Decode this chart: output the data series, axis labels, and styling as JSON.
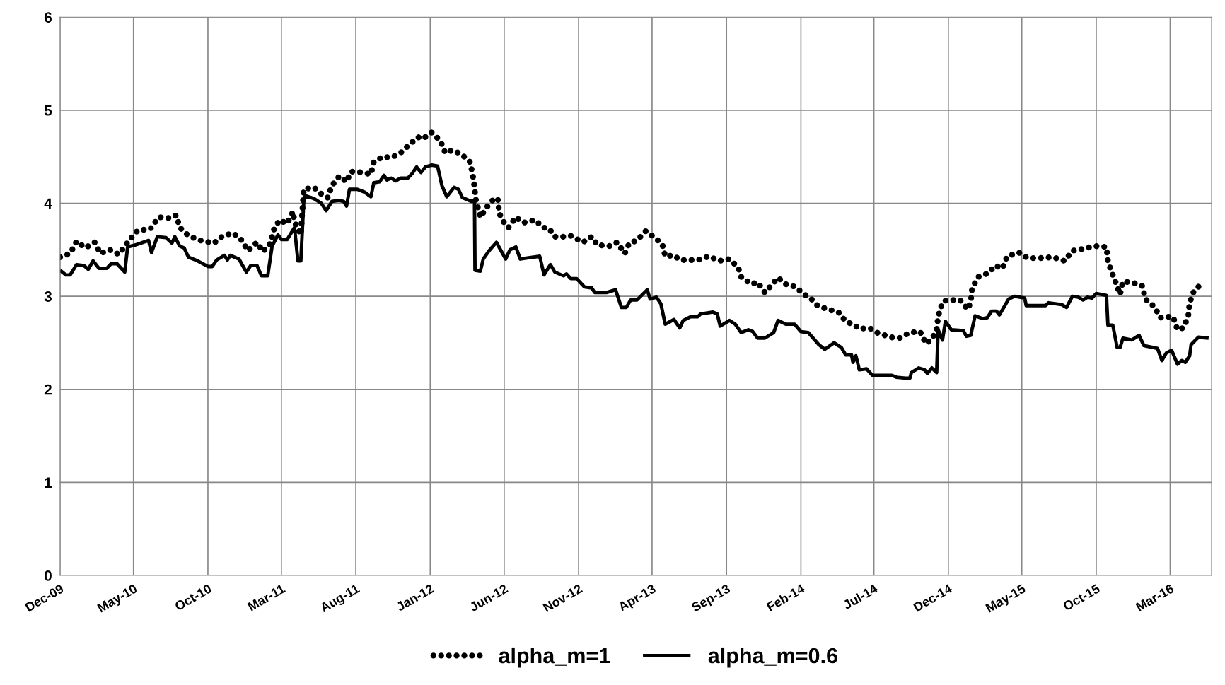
{
  "chart_data": {
    "type": "line",
    "xlim": [
      "2009-12-01",
      "2016-05-25"
    ],
    "xticks": [
      {
        "value": "2009-12-01",
        "label": "Dec-09"
      },
      {
        "value": "2010-05-01",
        "label": "May-10"
      },
      {
        "value": "2010-10-01",
        "label": "Oct-10"
      },
      {
        "value": "2011-03-01",
        "label": "Mar-11"
      },
      {
        "value": "2011-08-01",
        "label": "Aug-11"
      },
      {
        "value": "2012-01-01",
        "label": "Jan-12"
      },
      {
        "value": "2012-06-01",
        "label": "Jun-12"
      },
      {
        "value": "2012-11-01",
        "label": "Nov-12"
      },
      {
        "value": "2013-04-01",
        "label": "Apr-13"
      },
      {
        "value": "2013-09-01",
        "label": "Sep-13"
      },
      {
        "value": "2014-02-01",
        "label": "Feb-14"
      },
      {
        "value": "2014-07-01",
        "label": "Jul-14"
      },
      {
        "value": "2014-12-01",
        "label": "Dec-14"
      },
      {
        "value": "2015-05-01",
        "label": "May-15"
      },
      {
        "value": "2015-10-01",
        "label": "Oct-15"
      },
      {
        "value": "2016-03-01",
        "label": "Mar-16"
      }
    ],
    "ylim": [
      0,
      6
    ],
    "yticks": [
      0,
      1,
      2,
      3,
      4,
      5,
      6
    ],
    "grid": true,
    "legend": "bottom",
    "marker": "none",
    "series": [
      {
        "name": "alpha_m=1",
        "color": "#000000",
        "line_style": "dotted",
        "x": [
          "2009-12-01",
          "2009-12-22",
          "2010-01-04",
          "2010-01-22",
          "2010-02-10",
          "2010-02-22",
          "2010-03-13",
          "2010-04-01",
          "2010-04-22",
          "2010-05-10",
          "2010-06-04",
          "2010-06-22",
          "2010-07-16",
          "2010-07-28",
          "2010-08-04",
          "2010-08-22",
          "2010-09-16",
          "2010-10-13",
          "2010-11-01",
          "2010-11-22",
          "2010-12-10",
          "2010-12-22",
          "2011-01-10",
          "2011-01-22",
          "2011-02-07",
          "2011-02-13",
          "2011-02-25",
          "2011-03-13",
          "2011-03-25",
          "2011-03-28",
          "2011-04-10",
          "2011-04-16",
          "2011-05-07",
          "2011-05-22",
          "2011-06-04",
          "2011-06-13",
          "2011-06-28",
          "2011-07-13",
          "2011-07-22",
          "2011-08-16",
          "2011-09-01",
          "2011-09-07",
          "2011-09-25",
          "2011-10-13",
          "2011-11-01",
          "2011-11-19",
          "2011-12-07",
          "2011-12-16",
          "2012-01-04",
          "2012-01-22",
          "2012-02-01",
          "2012-02-16",
          "2012-03-04",
          "2012-03-22",
          "2012-03-28",
          "2012-04-01",
          "2012-04-04",
          "2012-04-13",
          "2012-04-28",
          "2012-05-13",
          "2012-05-19",
          "2012-05-22",
          "2012-06-04",
          "2012-06-10",
          "2012-06-25",
          "2012-07-10",
          "2012-08-04",
          "2012-08-19",
          "2012-09-01",
          "2012-09-13",
          "2012-10-01",
          "2012-10-16",
          "2012-11-10",
          "2012-11-28",
          "2012-12-10",
          "2013-01-04",
          "2013-01-19",
          "2013-02-04",
          "2013-02-13",
          "2013-03-01",
          "2013-03-19",
          "2013-04-04",
          "2013-04-22",
          "2013-04-28",
          "2013-05-16",
          "2013-05-28",
          "2013-06-13",
          "2013-07-04",
          "2013-07-28",
          "2013-08-16",
          "2013-09-07",
          "2013-09-25",
          "2013-10-01",
          "2013-10-22",
          "2013-11-04",
          "2013-11-19",
          "2013-12-04",
          "2013-12-16",
          "2014-01-01",
          "2014-01-22",
          "2014-02-04",
          "2014-02-19",
          "2014-03-07",
          "2014-03-28",
          "2014-04-19",
          "2014-05-04",
          "2014-05-22",
          "2014-06-01",
          "2014-06-22",
          "2014-07-07",
          "2014-08-04",
          "2014-08-22",
          "2014-09-13",
          "2014-10-04",
          "2014-10-16",
          "2014-10-28",
          "2014-11-07",
          "2014-11-10",
          "2014-11-13",
          "2014-11-19",
          "2014-11-22",
          "2014-12-01",
          "2014-12-25",
          "2015-01-10",
          "2015-01-16",
          "2015-01-19",
          "2015-02-01",
          "2015-02-22",
          "2015-03-07",
          "2015-03-22",
          "2015-04-01",
          "2015-04-25",
          "2015-05-13",
          "2015-06-07",
          "2015-07-04",
          "2015-07-28",
          "2015-08-13",
          "2015-09-04",
          "2015-09-28",
          "2015-10-22",
          "2015-10-25",
          "2015-11-01",
          "2015-11-10",
          "2015-11-19",
          "2015-11-25",
          "2015-12-19",
          "2016-01-04",
          "2016-01-10",
          "2016-01-28",
          "2016-02-10",
          "2016-02-19",
          "2016-03-07",
          "2016-03-16",
          "2016-03-28",
          "2016-04-07",
          "2016-04-10",
          "2016-04-19",
          "2016-05-04"
        ],
        "values": [
          3.42,
          3.46,
          3.59,
          3.52,
          3.58,
          3.46,
          3.5,
          3.45,
          3.6,
          3.71,
          3.72,
          3.85,
          3.84,
          3.87,
          3.74,
          3.65,
          3.6,
          3.57,
          3.65,
          3.68,
          3.6,
          3.49,
          3.58,
          3.48,
          3.57,
          3.71,
          3.82,
          3.78,
          3.91,
          3.8,
          3.66,
          4.15,
          4.17,
          4.1,
          4.06,
          4.19,
          4.29,
          4.23,
          4.34,
          4.33,
          4.31,
          4.44,
          4.5,
          4.49,
          4.54,
          4.63,
          4.71,
          4.69,
          4.76,
          4.67,
          4.54,
          4.57,
          4.53,
          4.45,
          4.32,
          4.17,
          4.03,
          3.85,
          3.97,
          4.06,
          4.04,
          3.89,
          3.76,
          3.74,
          3.85,
          3.79,
          3.82,
          3.74,
          3.73,
          3.64,
          3.64,
          3.65,
          3.58,
          3.64,
          3.55,
          3.54,
          3.58,
          3.46,
          3.57,
          3.6,
          3.7,
          3.64,
          3.56,
          3.43,
          3.44,
          3.39,
          3.39,
          3.39,
          3.43,
          3.38,
          3.4,
          3.31,
          3.21,
          3.13,
          3.15,
          3.04,
          3.13,
          3.2,
          3.13,
          3.1,
          3.03,
          2.99,
          2.9,
          2.86,
          2.83,
          2.73,
          2.69,
          2.65,
          2.66,
          2.61,
          2.56,
          2.55,
          2.61,
          2.62,
          2.49,
          2.54,
          2.64,
          2.78,
          2.84,
          2.93,
          2.95,
          2.96,
          2.96,
          2.86,
          2.94,
          3.09,
          3.21,
          3.25,
          3.33,
          3.3,
          3.43,
          3.47,
          3.41,
          3.41,
          3.42,
          3.38,
          3.49,
          3.51,
          3.54,
          3.53,
          3.38,
          3.27,
          3.15,
          3.02,
          3.16,
          3.14,
          3.11,
          2.97,
          2.89,
          2.77,
          2.78,
          2.78,
          2.64,
          2.66,
          2.78,
          2.93,
          3.06,
          3.13
        ]
      },
      {
        "name": "alpha_m=0.6",
        "color": "#000000",
        "line_style": "solid",
        "x": [
          "2009-12-01",
          "2009-12-13",
          "2009-12-22",
          "2010-01-04",
          "2010-01-19",
          "2010-01-28",
          "2010-02-07",
          "2010-02-19",
          "2010-03-07",
          "2010-03-16",
          "2010-03-28",
          "2010-04-13",
          "2010-04-19",
          "2010-05-04",
          "2010-06-01",
          "2010-06-07",
          "2010-06-19",
          "2010-07-07",
          "2010-07-19",
          "2010-07-25",
          "2010-08-04",
          "2010-08-13",
          "2010-08-22",
          "2010-09-10",
          "2010-10-01",
          "2010-10-10",
          "2010-10-19",
          "2010-11-04",
          "2010-11-10",
          "2010-11-16",
          "2010-12-04",
          "2010-12-19",
          "2010-12-28",
          "2011-01-10",
          "2011-01-19",
          "2011-02-01",
          "2011-02-10",
          "2011-02-22",
          "2011-03-01",
          "2011-03-13",
          "2011-03-28",
          "2011-04-04",
          "2011-04-10",
          "2011-04-16",
          "2011-04-19",
          "2011-05-07",
          "2011-05-22",
          "2011-06-01",
          "2011-06-13",
          "2011-06-28",
          "2011-07-07",
          "2011-07-13",
          "2011-07-19",
          "2011-08-04",
          "2011-08-19",
          "2011-09-01",
          "2011-09-07",
          "2011-09-19",
          "2011-09-28",
          "2011-10-04",
          "2011-10-13",
          "2011-10-22",
          "2011-11-01",
          "2011-11-16",
          "2011-11-25",
          "2011-12-04",
          "2011-12-13",
          "2011-12-22",
          "2012-01-04",
          "2012-01-16",
          "2012-01-25",
          "2012-02-04",
          "2012-02-19",
          "2012-02-28",
          "2012-03-07",
          "2012-03-25",
          "2012-04-01",
          "2012-04-02",
          "2012-04-13",
          "2012-04-19",
          "2012-05-01",
          "2012-05-16",
          "2012-06-04",
          "2012-06-13",
          "2012-06-25",
          "2012-07-04",
          "2012-07-16",
          "2012-08-13",
          "2012-08-22",
          "2012-09-04",
          "2012-09-13",
          "2012-10-01",
          "2012-10-07",
          "2012-10-16",
          "2012-10-28",
          "2012-11-13",
          "2012-11-28",
          "2012-12-04",
          "2012-12-28",
          "2013-01-16",
          "2013-01-28",
          "2013-02-07",
          "2013-02-16",
          "2013-03-01",
          "2013-03-22",
          "2013-03-28",
          "2013-04-10",
          "2013-04-19",
          "2013-04-28",
          "2013-05-16",
          "2013-05-28",
          "2013-06-04",
          "2013-06-19",
          "2013-07-04",
          "2013-07-10",
          "2013-08-04",
          "2013-08-13",
          "2013-08-19",
          "2013-09-07",
          "2013-09-19",
          "2013-10-01",
          "2013-10-16",
          "2013-10-25",
          "2013-11-04",
          "2013-11-19",
          "2013-12-07",
          "2013-12-16",
          "2014-01-01",
          "2014-01-19",
          "2014-02-01",
          "2014-02-16",
          "2014-03-10",
          "2014-03-22",
          "2014-04-10",
          "2014-04-25",
          "2014-05-04",
          "2014-05-16",
          "2014-05-19",
          "2014-05-25",
          "2014-06-01",
          "2014-06-16",
          "2014-06-28",
          "2014-08-07",
          "2014-08-16",
          "2014-09-04",
          "2014-09-13",
          "2014-09-16",
          "2014-10-01",
          "2014-10-13",
          "2014-10-19",
          "2014-10-28",
          "2014-11-07",
          "2014-11-10",
          "2014-11-19",
          "2014-11-25",
          "2014-12-07",
          "2015-01-01",
          "2015-01-07",
          "2015-01-16",
          "2015-01-25",
          "2015-02-10",
          "2015-02-19",
          "2015-02-28",
          "2015-03-10",
          "2015-03-16",
          "2015-04-04",
          "2015-04-16",
          "2015-05-07",
          "2015-05-10",
          "2015-06-01",
          "2015-06-19",
          "2015-06-25",
          "2015-07-22",
          "2015-08-01",
          "2015-08-13",
          "2015-08-25",
          "2015-09-04",
          "2015-09-13",
          "2015-09-22",
          "2015-10-01",
          "2015-10-22",
          "2015-10-25",
          "2015-11-04",
          "2015-11-13",
          "2015-11-19",
          "2015-11-25",
          "2015-12-13",
          "2015-12-28",
          "2016-01-07",
          "2016-01-25",
          "2016-02-04",
          "2016-02-13",
          "2016-02-22",
          "2016-03-04",
          "2016-03-16",
          "2016-03-25",
          "2016-04-01",
          "2016-04-10",
          "2016-04-13",
          "2016-04-28",
          "2016-05-19"
        ],
        "values": [
          3.28,
          3.23,
          3.23,
          3.34,
          3.33,
          3.29,
          3.38,
          3.3,
          3.3,
          3.35,
          3.35,
          3.26,
          3.53,
          3.55,
          3.6,
          3.47,
          3.64,
          3.63,
          3.57,
          3.64,
          3.54,
          3.52,
          3.42,
          3.38,
          3.32,
          3.32,
          3.39,
          3.44,
          3.39,
          3.44,
          3.4,
          3.26,
          3.33,
          3.33,
          3.22,
          3.22,
          3.54,
          3.66,
          3.61,
          3.61,
          3.74,
          3.38,
          3.38,
          4.02,
          4.08,
          4.05,
          4.0,
          3.92,
          4.02,
          4.03,
          4.02,
          3.97,
          4.15,
          4.15,
          4.12,
          4.07,
          4.22,
          4.23,
          4.3,
          4.25,
          4.27,
          4.24,
          4.27,
          4.27,
          4.32,
          4.39,
          4.33,
          4.39,
          4.41,
          4.4,
          4.19,
          4.07,
          4.17,
          4.15,
          4.06,
          4.02,
          4.03,
          3.28,
          3.27,
          3.4,
          3.49,
          3.58,
          3.4,
          3.5,
          3.53,
          3.4,
          3.41,
          3.43,
          3.23,
          3.34,
          3.26,
          3.22,
          3.24,
          3.19,
          3.19,
          3.1,
          3.09,
          3.04,
          3.04,
          3.07,
          2.88,
          2.88,
          2.96,
          2.96,
          3.07,
          2.97,
          2.99,
          2.92,
          2.7,
          2.75,
          2.66,
          2.74,
          2.78,
          2.78,
          2.81,
          2.83,
          2.81,
          2.68,
          2.74,
          2.7,
          2.61,
          2.64,
          2.62,
          2.55,
          2.55,
          2.61,
          2.74,
          2.7,
          2.7,
          2.62,
          2.61,
          2.48,
          2.43,
          2.5,
          2.45,
          2.37,
          2.37,
          2.29,
          2.36,
          2.21,
          2.22,
          2.15,
          2.15,
          2.13,
          2.12,
          2.12,
          2.18,
          2.23,
          2.21,
          2.17,
          2.23,
          2.18,
          2.64,
          2.53,
          2.73,
          2.64,
          2.63,
          2.57,
          2.58,
          2.79,
          2.76,
          2.77,
          2.84,
          2.84,
          2.8,
          2.97,
          3.0,
          2.98,
          2.9,
          2.9,
          2.9,
          2.93,
          2.91,
          2.88,
          3.0,
          2.99,
          2.96,
          2.99,
          2.98,
          3.03,
          3.01,
          2.69,
          2.69,
          2.45,
          2.45,
          2.55,
          2.53,
          2.58,
          2.47,
          2.45,
          2.44,
          2.31,
          2.39,
          2.42,
          2.27,
          2.31,
          2.29,
          2.36,
          2.48,
          2.56,
          2.55
        ]
      }
    ]
  }
}
